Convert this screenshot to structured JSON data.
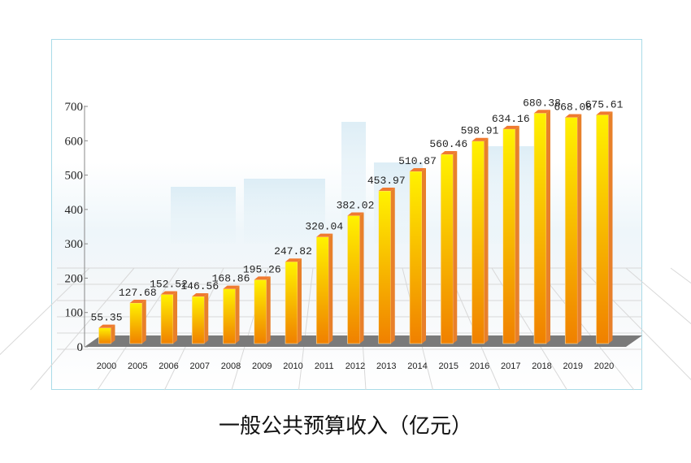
{
  "chart_data": {
    "type": "bar",
    "title": "一般公共预算收入（亿元）",
    "xlabel": "",
    "ylabel": "",
    "ylim": [
      0,
      700
    ],
    "yticks": [
      0,
      100,
      200,
      300,
      400,
      500,
      600,
      700
    ],
    "categories": [
      "2000",
      "2005",
      "2006",
      "2007",
      "2008",
      "2009",
      "2010",
      "2011",
      "2012",
      "2013",
      "2014",
      "2015",
      "2016",
      "2017",
      "2018",
      "2019",
      "2020"
    ],
    "values": [
      55.35,
      127.68,
      152.52,
      146.56,
      168.86,
      195.26,
      247.82,
      320.04,
      382.02,
      453.97,
      510.87,
      560.46,
      598.91,
      634.16,
      680.38,
      668.08,
      675.61
    ],
    "value_labels": [
      "55.35",
      "127.68",
      "152.52",
      "146.56",
      "168.86",
      "195.26",
      "247.82",
      "320.04",
      "382.02",
      "453.97",
      "510.87",
      "560.46",
      "598.91",
      "634.16",
      "680.38",
      "668.08",
      "675.61"
    ],
    "colors": {
      "bar_top": "#fff200",
      "bar_bottom": "#f08000",
      "bar_side": "#e8802a",
      "floor": "#7a7a7a"
    },
    "grid": false,
    "legend": "none"
  }
}
